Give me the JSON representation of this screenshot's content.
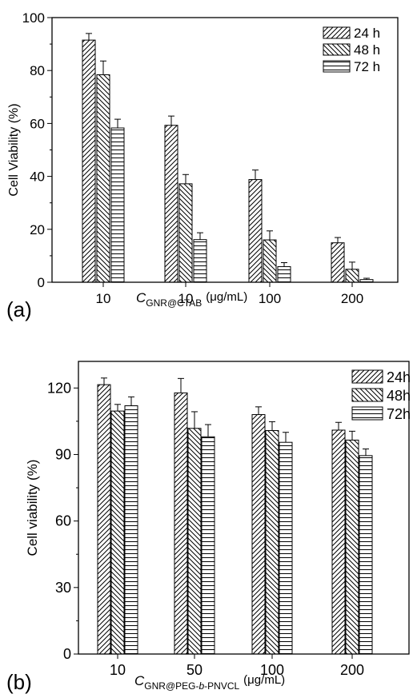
{
  "chart_data": [
    {
      "type": "bar",
      "panel_label": "(a)",
      "ylabel": "Cell Viability (%)",
      "xlabel": {
        "symbol": "C",
        "subscript": "GNR@CTAB",
        "unit": "(μg/mL)"
      },
      "categories": [
        "10",
        "10",
        "100",
        "200"
      ],
      "ylim": [
        0,
        100
      ],
      "yticks": [
        0,
        20,
        40,
        60,
        80,
        100
      ],
      "legend_position": "top-right",
      "series": [
        {
          "name": "24 h",
          "pattern": "diag-up",
          "values": [
            91.5,
            59.3,
            38.8,
            14.9
          ],
          "errors": [
            2.5,
            3.5,
            3.6,
            2.0
          ]
        },
        {
          "name": "48 h",
          "pattern": "diag-down",
          "values": [
            78.4,
            37.2,
            16.0,
            4.9
          ],
          "errors": [
            5.2,
            3.5,
            3.4,
            2.7
          ]
        },
        {
          "name": "72 h",
          "pattern": "horizontal",
          "values": [
            58.3,
            16.1,
            5.9,
            1.0
          ],
          "errors": [
            3.3,
            2.6,
            1.5,
            0.5
          ]
        }
      ]
    },
    {
      "type": "bar",
      "panel_label": "(b)",
      "ylabel": "Cell viability (%)",
      "xlabel": {
        "symbol": "C",
        "subscript_pre": "GNR@PEG-",
        "subscript_italic": "b",
        "subscript_post": "-PNVCL",
        "unit": "(μg/mL)"
      },
      "categories": [
        "10",
        "50",
        "100",
        "200"
      ],
      "ylim": [
        0,
        132
      ],
      "yticks": [
        0,
        30,
        60,
        90,
        120
      ],
      "legend_position": "top-right",
      "series": [
        {
          "name": "24h",
          "pattern": "diag-up",
          "values": [
            121.5,
            117.8,
            108.0,
            101.0
          ],
          "errors": [
            3.0,
            6.5,
            3.5,
            3.5
          ]
        },
        {
          "name": "48h",
          "pattern": "diag-down",
          "values": [
            109.6,
            101.8,
            100.8,
            96.5
          ],
          "errors": [
            3.0,
            7.5,
            4.0,
            4.0
          ]
        },
        {
          "name": "72h",
          "pattern": "horizontal",
          "values": [
            112.0,
            98.0,
            95.5,
            89.5
          ],
          "errors": [
            4.0,
            5.5,
            4.5,
            3.0
          ]
        }
      ]
    }
  ]
}
